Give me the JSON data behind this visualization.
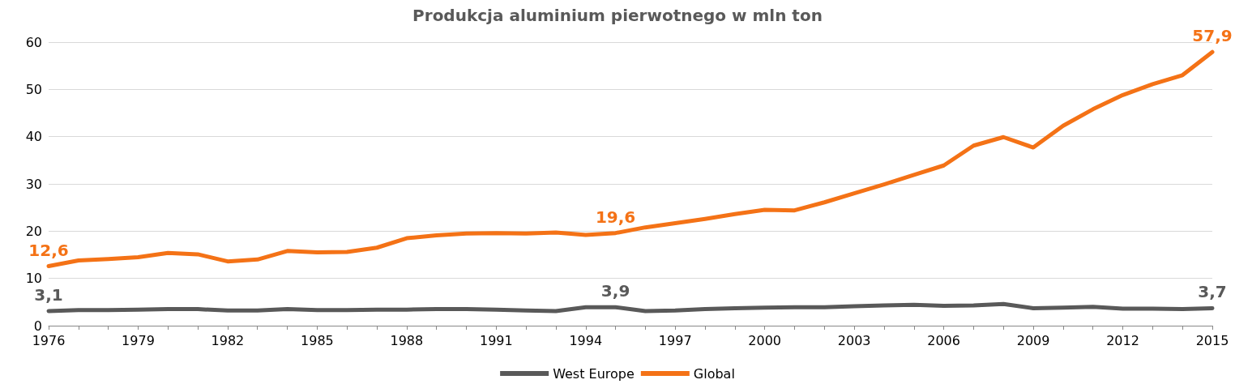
{
  "chart_data": {
    "type": "line",
    "title": "Produkcja aluminium pierwotnego w mln ton",
    "categories": [
      "1976",
      null,
      null,
      "1979",
      null,
      null,
      "1982",
      null,
      null,
      "1985",
      null,
      null,
      "1988",
      null,
      null,
      "1991",
      null,
      null,
      "1994",
      null,
      null,
      "1997",
      null,
      null,
      "2000",
      null,
      null,
      "2003",
      null,
      null,
      "2006",
      null,
      null,
      "2009",
      null,
      null,
      "2012",
      null,
      null,
      "2015"
    ],
    "series": [
      {
        "name": "West Europe",
        "color": "#595959",
        "values": [
          3.1,
          3.3,
          3.3,
          3.4,
          3.5,
          3.5,
          3.2,
          3.2,
          3.5,
          3.3,
          3.3,
          3.4,
          3.4,
          3.5,
          3.5,
          3.4,
          3.2,
          3.1,
          3.9,
          3.9,
          3.1,
          3.2,
          3.5,
          3.7,
          3.8,
          3.9,
          3.9,
          4.1,
          4.3,
          4.4,
          4.2,
          4.3,
          4.6,
          3.7,
          3.8,
          4.0,
          3.6,
          3.6,
          3.5,
          3.7
        ],
        "value_labels": [
          "3,1",
          null,
          null,
          null,
          null,
          null,
          null,
          null,
          null,
          null,
          null,
          null,
          null,
          null,
          null,
          null,
          null,
          null,
          null,
          "3,9",
          null,
          null,
          null,
          null,
          null,
          null,
          null,
          null,
          null,
          null,
          null,
          null,
          null,
          null,
          null,
          null,
          null,
          null,
          null,
          "3,7"
        ]
      },
      {
        "name": "Global",
        "color": "#f47216",
        "values": [
          12.6,
          13.8,
          14.1,
          14.5,
          15.4,
          15.1,
          13.6,
          14.0,
          15.8,
          15.5,
          15.6,
          16.5,
          18.5,
          19.1,
          19.5,
          19.6,
          19.5,
          19.7,
          19.2,
          19.6,
          20.8,
          21.7,
          22.6,
          23.6,
          24.5,
          24.4,
          26.1,
          28.0,
          29.9,
          31.9,
          33.9,
          38.1,
          39.9,
          37.7,
          42.3,
          45.8,
          48.8,
          51.1,
          53.0,
          57.9
        ],
        "value_labels": [
          "12,6",
          null,
          null,
          null,
          null,
          null,
          null,
          null,
          null,
          null,
          null,
          null,
          null,
          null,
          null,
          null,
          null,
          null,
          null,
          "19,6",
          null,
          null,
          null,
          null,
          null,
          null,
          null,
          null,
          null,
          null,
          null,
          null,
          null,
          null,
          null,
          null,
          null,
          null,
          null,
          "57,9"
        ]
      }
    ],
    "ylim": [
      0,
      60
    ],
    "yticks": [
      0,
      10,
      20,
      30,
      40,
      50,
      60
    ],
    "grid": "y",
    "legend": "bottom",
    "marker": "none",
    "line_style": "solid"
  }
}
